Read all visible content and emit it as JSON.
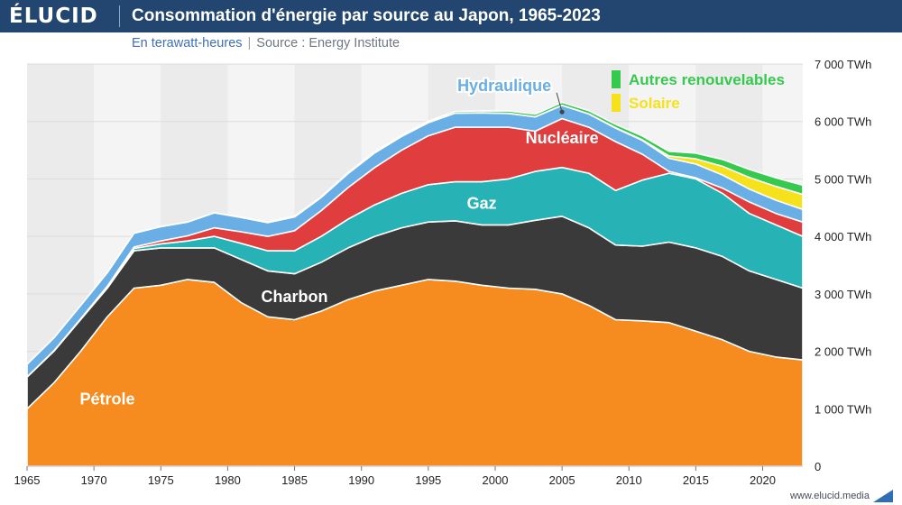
{
  "header": {
    "logo": "ÉLUCID",
    "title": "Consommation d'énergie par source au Japon, 1965-2023"
  },
  "subtitle": {
    "unit": "En terawatt-heures",
    "separator": "|",
    "source": "Source : Energy Institute"
  },
  "footer": {
    "url": "www.elucid.media",
    "mark_color": "#2f6db5"
  },
  "colors": {
    "header_bg": "#22466f",
    "plot_bg": "#f4f4f4",
    "band_bg": "#ebebeb",
    "grid": "#dcdcdc"
  },
  "chart_data": {
    "type": "area",
    "stacked": true,
    "title": "Consommation d'énergie par source au Japon, 1965-2023",
    "ylabel": "En terawatt-heures",
    "xlim": [
      1965,
      2023
    ],
    "ylim": [
      0,
      7000
    ],
    "x_ticks": [
      "1965",
      "1970",
      "1975",
      "1980",
      "1985",
      "1990",
      "1995",
      "2000",
      "2005",
      "2010",
      "2015",
      "2020"
    ],
    "y_ticks": [
      {
        "value": 0,
        "label": "0"
      },
      {
        "value": 1000,
        "label": "1 000 TWh"
      },
      {
        "value": 2000,
        "label": "2 000 TWh"
      },
      {
        "value": 3000,
        "label": "3 000 TWh"
      },
      {
        "value": 4000,
        "label": "4 000 TWh"
      },
      {
        "value": 5000,
        "label": "5 000 TWh"
      },
      {
        "value": 6000,
        "label": "6 000 TWh"
      },
      {
        "value": 7000,
        "label": "7 000 TWh"
      }
    ],
    "x": [
      1965,
      1967,
      1969,
      1971,
      1973,
      1975,
      1977,
      1979,
      1981,
      1983,
      1985,
      1987,
      1989,
      1991,
      1993,
      1995,
      1997,
      1999,
      2001,
      2003,
      2005,
      2007,
      2009,
      2011,
      2013,
      2015,
      2017,
      2019,
      2021,
      2023
    ],
    "series": [
      {
        "name": "Pétrole",
        "label": "Pétrole",
        "color": "#f68b1f",
        "values": [
          1000,
          1450,
          2000,
          2600,
          3100,
          3150,
          3250,
          3200,
          2850,
          2600,
          2550,
          2700,
          2900,
          3050,
          3150,
          3250,
          3220,
          3150,
          3100,
          3080,
          3000,
          2800,
          2550,
          2530,
          2500,
          2350,
          2200,
          2000,
          1900,
          1850
        ]
      },
      {
        "name": "Charbon",
        "label": "Charbon",
        "color": "#3a3a3a",
        "values": [
          550,
          550,
          550,
          500,
          650,
          650,
          550,
          600,
          750,
          800,
          800,
          850,
          900,
          950,
          1000,
          1000,
          1050,
          1050,
          1100,
          1200,
          1350,
          1350,
          1300,
          1300,
          1400,
          1450,
          1450,
          1400,
          1350,
          1250
        ]
      },
      {
        "name": "Gaz",
        "label": "Gaz",
        "color": "#27b2b6",
        "values": [
          5,
          8,
          10,
          20,
          40,
          70,
          120,
          200,
          280,
          350,
          400,
          450,
          500,
          550,
          600,
          650,
          680,
          750,
          800,
          850,
          850,
          950,
          950,
          1150,
          1200,
          1200,
          1100,
          1000,
          950,
          900
        ]
      },
      {
        "name": "Nucléaire",
        "label": "Nucléaire",
        "color": "#e03e3e",
        "values": [
          0,
          1,
          5,
          15,
          25,
          50,
          90,
          150,
          200,
          250,
          350,
          450,
          550,
          650,
          750,
          850,
          950,
          950,
          900,
          700,
          850,
          800,
          850,
          450,
          30,
          20,
          90,
          200,
          200,
          250
        ]
      },
      {
        "name": "Hydraulique",
        "label": "Hydraulique",
        "color": "#6aaee6",
        "values": [
          220,
          225,
          230,
          235,
          240,
          250,
          240,
          260,
          250,
          240,
          240,
          230,
          245,
          255,
          240,
          230,
          245,
          250,
          240,
          250,
          230,
          230,
          235,
          240,
          230,
          240,
          230,
          225,
          230,
          220
        ]
      },
      {
        "name": "Solaire",
        "label": "Solaire",
        "color": "#f5e11c",
        "values": [
          0,
          0,
          0,
          0,
          0,
          0,
          0,
          0,
          0,
          0,
          0,
          0,
          0,
          0,
          0,
          0,
          1,
          1,
          2,
          2,
          3,
          4,
          7,
          12,
          40,
          90,
          150,
          200,
          240,
          260
        ]
      },
      {
        "name": "Autres renouvelables",
        "label": "Autres renouvelables",
        "color": "#35c94e",
        "values": [
          0,
          0,
          0,
          0,
          0,
          1,
          2,
          3,
          5,
          8,
          10,
          12,
          15,
          18,
          20,
          25,
          30,
          35,
          40,
          45,
          50,
          55,
          60,
          65,
          80,
          100,
          120,
          140,
          150,
          160
        ]
      }
    ],
    "legend": [
      "Autres renouvelables",
      "Solaire"
    ],
    "annotations": [
      "Hydraulique"
    ]
  }
}
